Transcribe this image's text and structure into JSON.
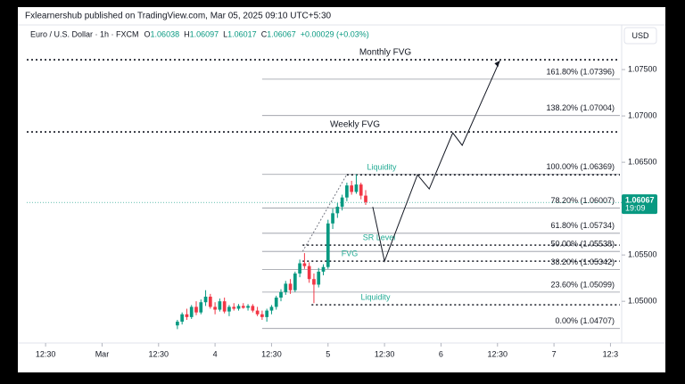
{
  "chart_data": {
    "type": "candlestick",
    "header": "Fxlearnershub published on TradingView.com, Mar 05, 2025 09:10 UTC+5:30",
    "symbol": "Euro / U.S. Dollar · 1h · FXCM",
    "ohlc_legend": [
      {
        "key": "O",
        "value": "1.06038"
      },
      {
        "key": "H",
        "value": "1.06097"
      },
      {
        "key": "L",
        "value": "1.06017"
      },
      {
        "key": "C",
        "value": "1.06067"
      }
    ],
    "change": "+0.00029 (+0.03%)",
    "currency": "USD",
    "up_color": "#089981",
    "down_color": "#f23645",
    "xlim": [
      0,
      126
    ],
    "ylim": [
      1.0455,
      1.0777
    ],
    "xticks": [
      {
        "value": 4,
        "label": "12:30"
      },
      {
        "value": 16,
        "label": "Mar"
      },
      {
        "value": 28,
        "label": "12:30"
      },
      {
        "value": 40,
        "label": "4"
      },
      {
        "value": 52,
        "label": "12:30"
      },
      {
        "value": 64,
        "label": "5"
      },
      {
        "value": 76,
        "label": "12:30"
      },
      {
        "value": 88,
        "label": "6"
      },
      {
        "value": 100,
        "label": "12:30"
      },
      {
        "value": 112,
        "label": "7"
      },
      {
        "value": 124,
        "label": "12:3"
      }
    ],
    "yticks": [
      {
        "value": 1.075,
        "label": "1.07500"
      },
      {
        "value": 1.07,
        "label": "1.07000"
      },
      {
        "value": 1.065,
        "label": "1.06500"
      },
      {
        "value": 1.055,
        "label": "1.05500"
      },
      {
        "value": 1.05,
        "label": "1.05000"
      }
    ],
    "x": [
      32,
      33,
      34,
      35,
      36,
      37,
      38,
      39,
      40,
      41,
      42,
      43,
      44,
      45,
      46,
      47,
      48,
      49,
      50,
      51,
      52,
      53,
      54,
      55,
      56,
      57,
      58,
      59,
      60,
      61,
      62,
      63,
      64,
      65,
      66,
      67,
      68,
      69,
      70,
      71,
      72
    ],
    "candles": [
      [
        1.0474,
        1.048,
        1.047,
        1.0478
      ],
      [
        1.0478,
        1.0488,
        1.0475,
        1.0486
      ],
      [
        1.0486,
        1.0492,
        1.048,
        1.0483
      ],
      [
        1.0483,
        1.0496,
        1.0481,
        1.0494
      ],
      [
        1.0494,
        1.05,
        1.0485,
        1.0488
      ],
      [
        1.0488,
        1.0502,
        1.0486,
        1.0499
      ],
      [
        1.0499,
        1.0512,
        1.0495,
        1.0505
      ],
      [
        1.0505,
        1.0508,
        1.0492,
        1.0494
      ],
      [
        1.0494,
        1.0499,
        1.0486,
        1.0491
      ],
      [
        1.0491,
        1.0503,
        1.0489,
        1.05
      ],
      [
        1.05,
        1.0504,
        1.0487,
        1.0489
      ],
      [
        1.0489,
        1.0496,
        1.0484,
        1.0494
      ],
      [
        1.0494,
        1.0498,
        1.049,
        1.0492
      ],
      [
        1.0492,
        1.0497,
        1.049,
        1.0495
      ],
      [
        1.0495,
        1.0498,
        1.0492,
        1.0493
      ],
      [
        1.0493,
        1.0497,
        1.049,
        1.0495
      ],
      [
        1.0495,
        1.0497,
        1.0488,
        1.049
      ],
      [
        1.049,
        1.0494,
        1.0484,
        1.0486
      ],
      [
        1.0486,
        1.049,
        1.048,
        1.0483
      ],
      [
        1.0483,
        1.0492,
        1.0478,
        1.049
      ],
      [
        1.049,
        1.0496,
        1.0486,
        1.0494
      ],
      [
        1.0494,
        1.0506,
        1.0491,
        1.0504
      ],
      [
        1.0504,
        1.0513,
        1.05,
        1.051
      ],
      [
        1.051,
        1.0522,
        1.0507,
        1.0519
      ],
      [
        1.0519,
        1.0524,
        1.0508,
        1.0512
      ],
      [
        1.0512,
        1.0532,
        1.051,
        1.053
      ],
      [
        1.053,
        1.0545,
        1.0526,
        1.0541
      ],
      [
        1.0541,
        1.0552,
        1.0535,
        1.0538
      ],
      [
        1.0538,
        1.0542,
        1.052,
        1.0524
      ],
      [
        1.0524,
        1.053,
        1.0498,
        1.0518
      ],
      [
        1.0518,
        1.0536,
        1.0515,
        1.0532
      ],
      [
        1.0532,
        1.054,
        1.0528,
        1.0537
      ],
      [
        1.0537,
        1.0588,
        1.0535,
        1.0584
      ],
      [
        1.0584,
        1.06,
        1.0578,
        1.0595
      ],
      [
        1.0595,
        1.0606,
        1.059,
        1.0602
      ],
      [
        1.0602,
        1.0615,
        1.0598,
        1.0612
      ],
      [
        1.0612,
        1.0628,
        1.0608,
        1.0625
      ],
      [
        1.0625,
        1.063,
        1.0615,
        1.0618
      ],
      [
        1.0618,
        1.0637,
        1.0616,
        1.0626
      ],
      [
        1.0626,
        1.0628,
        1.061,
        1.0614
      ],
      [
        1.0614,
        1.062,
        1.0604,
        1.0607
      ]
    ],
    "last_price": 1.06067,
    "countdown": "19:09",
    "fib_from": 50,
    "fib_levels": [
      {
        "label": "161.80% (1.07396)",
        "value": 1.07396
      },
      {
        "label": "138.20% (1.07004)",
        "value": 1.07004
      },
      {
        "label": "100.00% (1.06369)",
        "value": 1.06369
      },
      {
        "label": "78.20% (1.06007)",
        "value": 1.06007
      },
      {
        "label": "61.80% (1.05734)",
        "value": 1.05734
      },
      {
        "label": "50.00% (1.05538)",
        "value": 1.05538
      },
      {
        "label": "38.20% (1.05342)",
        "value": 1.05342
      },
      {
        "label": "23.60% (1.05099)",
        "value": 1.05099
      },
      {
        "label": "0.00% (1.04707)",
        "value": 1.04707
      }
    ],
    "annotations": [
      {
        "label": "Monthly FVG",
        "value": 1.07606,
        "from": 0,
        "color": "#131722"
      },
      {
        "label": "Weekly FVG",
        "value": 1.06827,
        "from": 0,
        "color": "#131722"
      },
      {
        "label": "Liquidity",
        "value": 1.06365,
        "from": 68,
        "color": "#22ab94"
      },
      {
        "label": "SR Level",
        "value": 1.05606,
        "from": 58.6,
        "color": "#22ab94"
      },
      {
        "label": "FVG",
        "value": 1.05433,
        "from": 58.6,
        "color": "#22ab94"
      },
      {
        "label": "Liquidity",
        "value": 1.04962,
        "from": 60.5,
        "color": "#22ab94"
      }
    ],
    "projection": {
      "x": [
        73.5,
        76,
        83,
        85.5,
        90.5,
        92.5,
        100.5
      ],
      "values": [
        1.06019,
        1.05433,
        1.06365,
        1.06212,
        1.06817,
        1.06683,
        1.07596
      ]
    }
  }
}
